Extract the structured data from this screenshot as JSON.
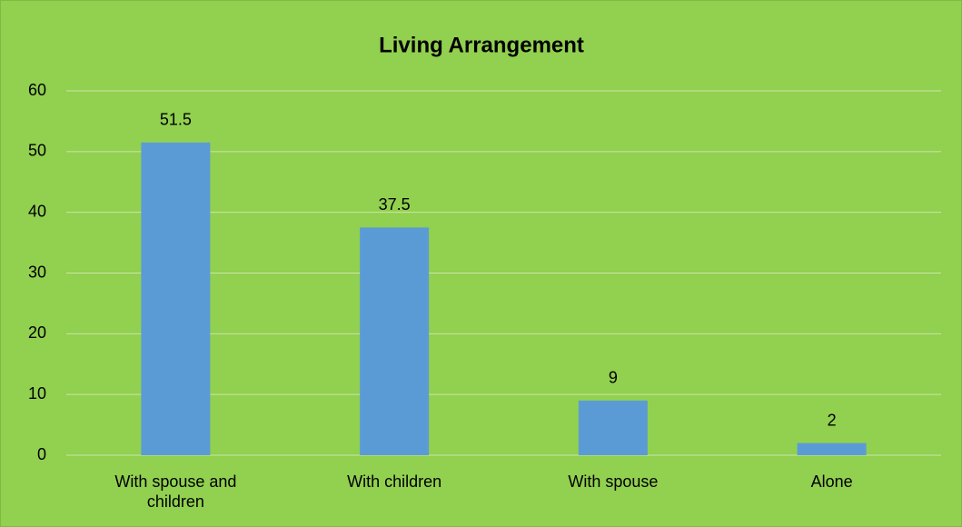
{
  "chart_data": {
    "type": "bar",
    "title": "Living Arrangement",
    "categories": [
      "With spouse and children",
      "With children",
      "With spouse",
      "Alone"
    ],
    "values": [
      51.5,
      37.5,
      9,
      2
    ],
    "color": "#5b9bd5",
    "ylim": [
      0,
      60
    ],
    "yticks": [
      0,
      10,
      20,
      30,
      40,
      50,
      60
    ],
    "grid": true,
    "data_labels": true
  }
}
